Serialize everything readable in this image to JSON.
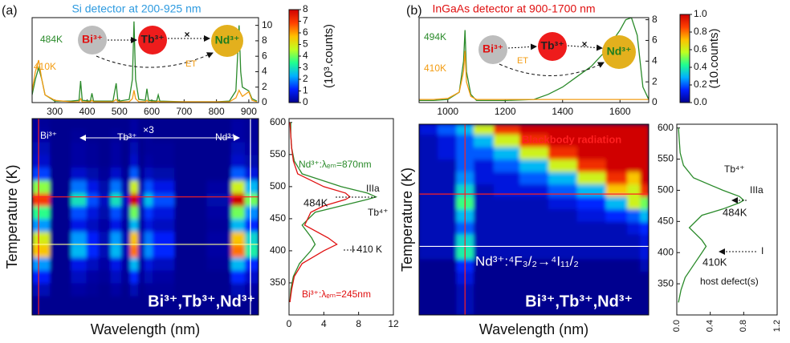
{
  "chart_data": [
    {
      "type": "line",
      "panel_label": "(a)",
      "title": "Si detector at 200-925 nm",
      "title_color": "#2e9be0",
      "x": [
        230,
        240,
        250,
        260,
        270,
        300,
        350,
        375,
        380,
        385,
        410,
        415,
        420,
        480,
        490,
        495,
        500,
        530,
        540,
        545,
        550,
        560,
        580,
        585,
        590,
        615,
        620,
        625,
        700,
        800,
        840,
        860,
        870,
        875,
        880,
        900,
        910,
        925
      ],
      "xlim": [
        230,
        930
      ],
      "xticks": [
        300,
        400,
        500,
        600,
        700,
        800,
        900
      ],
      "ylim": [
        0,
        11
      ],
      "yticks": [
        0,
        2,
        4,
        6,
        8,
        10
      ],
      "yaxis_side": "right",
      "series": [
        {
          "name": "484K",
          "color": "#2a8a2a",
          "values": [
            1,
            3,
            4.5,
            3,
            1,
            0.2,
            0.2,
            0.3,
            2.8,
            0.3,
            0.2,
            1.2,
            0.2,
            0.2,
            2.5,
            0.3,
            0.2,
            0.4,
            3,
            10.5,
            3,
            0.4,
            0.3,
            1.8,
            0.3,
            0.2,
            1,
            0.2,
            0.1,
            0.1,
            0.2,
            1.5,
            10,
            4,
            2,
            1.5,
            0.5,
            0.2
          ]
        },
        {
          "name": "410K",
          "color": "#f39c12",
          "values": [
            1.5,
            4,
            5.5,
            3,
            1,
            0.3,
            0.1,
            0.1,
            0.5,
            0.1,
            0.1,
            0.3,
            0.1,
            0.1,
            0.4,
            0.1,
            0.1,
            0.1,
            0.5,
            1.6,
            0.5,
            0.1,
            0.1,
            0.3,
            0.1,
            0.1,
            0.2,
            0.1,
            0.1,
            0.1,
            0.1,
            0.6,
            1.6,
            1.2,
            0.8,
            1.4,
            0.3,
            0.1
          ]
        }
      ],
      "annotations": [
        "Bi³⁺",
        "Tb³⁺",
        "Nd³⁺",
        "×",
        "ET"
      ]
    },
    {
      "type": "heatmap",
      "xlabel": "Wavelength (nm)",
      "ylabel": "Temperature (K)",
      "x": [
        250,
        320,
        380,
        415,
        455,
        490,
        520,
        545,
        570,
        585,
        620,
        720,
        820,
        870,
        905
      ],
      "y": [
        320,
        340,
        360,
        380,
        400,
        420,
        440,
        460,
        480,
        500,
        520,
        540,
        560,
        580,
        600
      ],
      "z": [
        [
          0,
          0,
          0,
          0,
          0,
          0,
          0,
          0,
          0,
          0,
          0,
          0,
          0,
          0,
          0
        ],
        [
          0.4,
          0,
          0.2,
          0.1,
          0,
          0.2,
          0,
          0.4,
          0,
          0.1,
          0.1,
          0,
          0,
          0.4,
          0.2
        ],
        [
          1.1,
          0,
          0.5,
          0.2,
          0.1,
          0.5,
          0.1,
          1.2,
          0.1,
          0.4,
          0.2,
          0,
          0,
          1.2,
          0.6
        ],
        [
          2.1,
          0,
          0.9,
          0.5,
          0.2,
          0.9,
          0.2,
          2.4,
          0.2,
          0.8,
          0.5,
          0,
          0.1,
          2.4,
          1.2
        ],
        [
          5.6,
          0,
          2.4,
          1.2,
          0.4,
          2.4,
          0.4,
          6.4,
          0.4,
          2,
          1.2,
          0,
          0.2,
          6.4,
          3.2
        ],
        [
          4.9,
          0,
          2.1,
          1.1,
          0.4,
          2.1,
          0.4,
          5.6,
          0.4,
          1.8,
          1.1,
          0,
          0.2,
          5.6,
          2.8
        ],
        [
          2.1,
          0,
          0.9,
          0.5,
          0.2,
          0.9,
          0.2,
          2.4,
          0.2,
          0.8,
          0.5,
          0,
          0.1,
          2.4,
          1.2
        ],
        [
          3.5,
          0,
          1.5,
          0.8,
          0.3,
          1.5,
          0.3,
          4,
          0.3,
          1.3,
          0.8,
          0,
          0.2,
          4,
          2
        ],
        [
          7,
          0,
          3,
          1.5,
          0.5,
          3,
          0.5,
          8,
          0.5,
          2.5,
          1.5,
          0,
          0.3,
          8,
          4
        ],
        [
          4.2,
          0,
          1.8,
          0.9,
          0.3,
          1.8,
          0.3,
          4.8,
          0.3,
          1.5,
          0.9,
          0,
          0.2,
          4.8,
          2.4
        ],
        [
          1.4,
          0,
          0.6,
          0.3,
          0.1,
          0.6,
          0.1,
          1.6,
          0.1,
          0.5,
          0.3,
          0,
          0,
          1.6,
          0.8
        ],
        [
          0.6,
          0,
          0.2,
          0.1,
          0,
          0.2,
          0,
          0.6,
          0,
          0.2,
          0.1,
          0,
          0,
          0.6,
          0.3
        ],
        [
          0.4,
          0,
          0.2,
          0.1,
          0,
          0.2,
          0,
          0.4,
          0,
          0.1,
          0.1,
          0,
          0,
          0.4,
          0.2
        ],
        [
          0.2,
          0,
          0.1,
          0,
          0,
          0.1,
          0,
          0.2,
          0,
          0.1,
          0,
          0,
          0,
          0.2,
          0.1
        ],
        [
          0.1,
          0,
          0,
          0,
          0,
          0,
          0,
          0.2,
          0,
          0,
          0,
          0,
          0,
          0.2,
          0.1
        ]
      ],
      "xlim": [
        230,
        930
      ],
      "ylim": [
        300,
        606
      ],
      "zlim": [
        0,
        8
      ],
      "colormap": [
        "#00008f",
        "#0020ff",
        "#00b0ff",
        "#20ff90",
        "#c0ff20",
        "#ffc000",
        "#ff4000",
        "#d00000"
      ],
      "colorbar": {
        "label": "(10³.counts)",
        "ticks": [
          0,
          1,
          2,
          3,
          4,
          5,
          6,
          7,
          8
        ]
      },
      "vlines": [
        {
          "value": 250,
          "color": "#ff2020"
        },
        {
          "value": 905,
          "color": "#ffffff"
        }
      ],
      "hlines": [
        {
          "value": 484,
          "color": "#ff2020"
        },
        {
          "value": 410,
          "color": "#ffff90"
        }
      ],
      "annotations": [
        "Bi³⁺",
        "Tb³⁺",
        "Nd³⁺",
        "×3",
        "Bi³⁺,Tb³⁺,Nd³⁺"
      ]
    },
    {
      "type": "line",
      "orientation": "horizontal",
      "y": [
        320,
        340,
        360,
        380,
        400,
        410,
        420,
        440,
        460,
        470,
        480,
        484,
        490,
        500,
        520,
        540,
        560,
        580,
        600
      ],
      "ylim": [
        300,
        606
      ],
      "yticks": [
        350,
        400,
        450,
        500,
        550,
        600
      ],
      "xlim": [
        0,
        12
      ],
      "xticks": [
        0,
        4,
        8,
        12
      ],
      "series": [
        {
          "name": "Nd³⁺:λₑₘ=870nm",
          "color": "#2a8a2a",
          "values": [
            0.1,
            0.2,
            0.5,
            1.2,
            2.5,
            3,
            2.6,
            1.5,
            3,
            6,
            9,
            10,
            9,
            6,
            1.5,
            0.6,
            0.3,
            0.2,
            0.2
          ]
        },
        {
          "name": "Bi³⁺:λₑₘ=245nm",
          "color": "#e01010",
          "values": [
            0.1,
            0.3,
            0.6,
            1.5,
            4,
            5.5,
            4.5,
            1.8,
            2.5,
            4,
            6.5,
            7,
            6.5,
            4,
            1,
            0.5,
            0.3,
            0.2,
            0.1
          ]
        }
      ],
      "annotations": [
        "484K",
        "IIIa",
        "Tb⁴⁺",
        "I 410 K"
      ]
    },
    {
      "type": "line",
      "panel_label": "(b)",
      "title": "InGaAs detector at 900-1700 nm",
      "title_color": "#e01010",
      "x": [
        900,
        950,
        1000,
        1040,
        1055,
        1060,
        1065,
        1080,
        1100,
        1200,
        1300,
        1350,
        1400,
        1450,
        1500,
        1550,
        1600,
        1620,
        1640,
        1660,
        1680,
        1700
      ],
      "xlim": [
        900,
        1700
      ],
      "xticks": [
        1000,
        1200,
        1400,
        1600
      ],
      "ylim": [
        0,
        8.2
      ],
      "yticks": [
        0,
        2,
        4,
        6,
        8
      ],
      "yaxis_side": "right",
      "series": [
        {
          "name": "494K",
          "color": "#2a8a2a",
          "values": [
            0.2,
            0.2,
            0.3,
            1,
            4,
            7,
            3,
            0.8,
            0.2,
            0.2,
            0.3,
            0.8,
            1.5,
            2.5,
            3.5,
            5,
            7,
            8,
            8.2,
            6.5,
            1.5,
            0.3
          ]
        },
        {
          "name": "410K",
          "color": "#f39c12",
          "values": [
            0.3,
            0.3,
            0.4,
            1,
            3,
            5,
            2,
            0.6,
            0.3,
            0.3,
            0.3,
            0.3,
            0.3,
            0.3,
            0.3,
            0.3,
            0.3,
            0.3,
            0.3,
            0.3,
            0.3,
            0.3
          ]
        }
      ],
      "annotations": [
        "Bi³⁺",
        "Tb³⁺",
        "Nd³⁺",
        "×",
        "ET"
      ]
    },
    {
      "type": "heatmap",
      "xlabel": "Wavelength (nm)",
      "ylabel": "Temperature (K)",
      "x": [
        930,
        1000,
        1060,
        1120,
        1200,
        1300,
        1400,
        1500,
        1600,
        1650,
        1690
      ],
      "y": [
        320,
        340,
        360,
        380,
        400,
        420,
        440,
        460,
        480,
        500,
        520,
        540,
        560,
        580,
        600
      ],
      "z": [
        [
          0,
          0,
          0.05,
          0,
          0,
          0,
          0,
          0,
          0,
          0,
          0
        ],
        [
          0,
          0,
          0.05,
          0,
          0,
          0,
          0,
          0,
          0,
          0,
          0
        ],
        [
          0,
          0,
          0.1,
          0,
          0,
          0,
          0,
          0,
          0,
          0,
          0
        ],
        [
          0,
          0,
          0.15,
          0,
          0,
          0,
          0,
          0,
          0,
          0,
          0.05
        ],
        [
          0.05,
          0.05,
          0.4,
          0.05,
          0.05,
          0.05,
          0.05,
          0.05,
          0.05,
          0.05,
          0.1
        ],
        [
          0.05,
          0.05,
          0.35,
          0.05,
          0.05,
          0.05,
          0.05,
          0.05,
          0.05,
          0.05,
          0.1
        ],
        [
          0.05,
          0.05,
          0.2,
          0.05,
          0.05,
          0.05,
          0.05,
          0.05,
          0.05,
          0.1,
          0.15
        ],
        [
          0.05,
          0.05,
          0.3,
          0.05,
          0.05,
          0.05,
          0.05,
          0.1,
          0.15,
          0.2,
          0.3
        ],
        [
          0.05,
          0.05,
          0.45,
          0.05,
          0.05,
          0.05,
          0.1,
          0.15,
          0.3,
          0.6,
          0.5
        ],
        [
          0.05,
          0.05,
          0.35,
          0.05,
          0.1,
          0.1,
          0.2,
          0.3,
          0.7,
          0.6,
          0.9
        ],
        [
          0.05,
          0.05,
          0.25,
          0.1,
          0.1,
          0.2,
          0.3,
          0.6,
          0.9,
          0.7,
          1
        ],
        [
          0.05,
          0.05,
          0.2,
          0.1,
          0.2,
          0.3,
          0.6,
          0.9,
          1,
          1,
          1
        ],
        [
          0.05,
          0.1,
          0.2,
          0.2,
          0.3,
          0.6,
          0.9,
          1,
          1,
          1,
          1
        ],
        [
          0.05,
          0.1,
          0.2,
          0.3,
          0.6,
          0.9,
          1,
          1,
          1,
          1,
          1
        ],
        [
          0.1,
          0.2,
          0.3,
          0.6,
          0.9,
          1,
          1,
          1,
          1,
          1,
          1
        ]
      ],
      "xlim": [
        900,
        1700
      ],
      "ylim": [
        300,
        606
      ],
      "zlim": [
        0,
        1
      ],
      "colormap": [
        "#00008f",
        "#0020ff",
        "#00b0ff",
        "#20ff90",
        "#c0ff20",
        "#ffc000",
        "#ff4000",
        "#d00000"
      ],
      "colorbar": {
        "label": "(10.counts)",
        "ticks": [
          {
            "value": 0,
            "label": "0.0"
          },
          0.2,
          0.4,
          0.6,
          0.8,
          {
            "value": 1,
            "label": "1.0"
          }
        ]
      },
      "vlines": [
        {
          "value": 1060,
          "color": "#ff2020"
        }
      ],
      "hlines": [
        {
          "value": 494,
          "color": "#ff2020"
        },
        {
          "value": 410,
          "color": "#ffffff"
        }
      ],
      "annotations": [
        "Blackbody radiation",
        "Nd³⁺:⁴F₃/₂→⁴I₁₁/₂",
        "Bi³⁺,Tb³⁺,Nd³⁺"
      ]
    },
    {
      "type": "line",
      "orientation": "horizontal",
      "xtick_rotation": -90,
      "y": [
        320,
        340,
        360,
        380,
        400,
        410,
        420,
        440,
        460,
        470,
        480,
        484,
        490,
        500,
        520,
        540,
        560,
        580,
        600
      ],
      "ylim": [
        300,
        606
      ],
      "yticks": [
        350,
        400,
        450,
        500,
        550,
        600
      ],
      "xlim": [
        0,
        1.2
      ],
      "xticks": [
        {
          "value": 0,
          "label": "0.0"
        },
        0.4,
        0.8,
        1.2
      ],
      "series": [
        {
          "color": "#2a8a2a",
          "values": [
            0.02,
            0.05,
            0.1,
            0.2,
            0.3,
            0.35,
            0.3,
            0.15,
            0.3,
            0.55,
            0.75,
            0.8,
            0.75,
            0.55,
            0.2,
            0.08,
            0.04,
            0.03,
            0.02
          ]
        }
      ],
      "annotations": [
        "Tb⁴⁺",
        "IIIa",
        "484K",
        "410K",
        "I",
        "host defect(s)"
      ]
    }
  ]
}
